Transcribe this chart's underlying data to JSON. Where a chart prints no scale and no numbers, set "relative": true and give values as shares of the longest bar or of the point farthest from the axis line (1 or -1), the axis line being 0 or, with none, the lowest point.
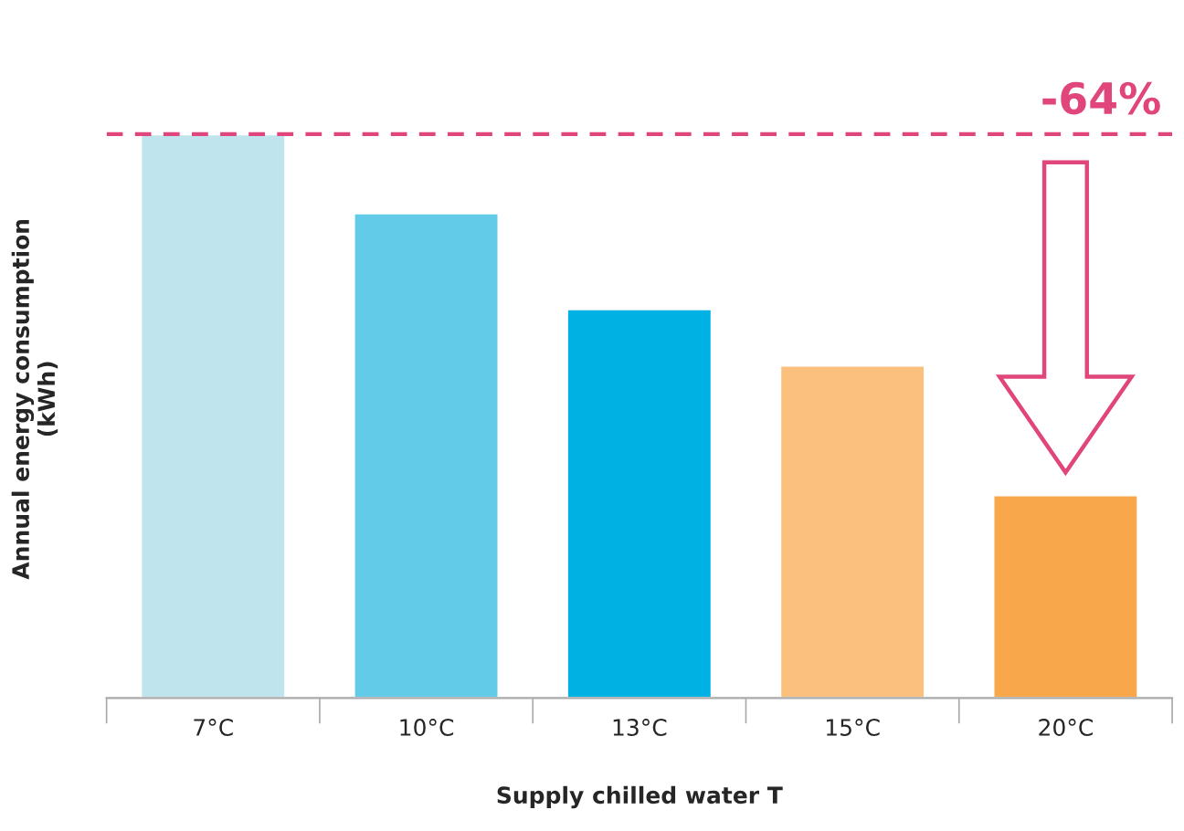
{
  "chart_data": {
    "type": "bar",
    "relative": true,
    "categories": [
      "7°C",
      "10°C",
      "13°C",
      "15°C",
      "20°C"
    ],
    "values": [
      1,
      0.86,
      0.69,
      0.59,
      0.36
    ],
    "colors": [
      "#bfe4ee",
      "#62cbe8",
      "#00b2e3",
      "#fbc07e",
      "#f8a84a"
    ],
    "xlabel": "Supply chilled water T",
    "ylabel": "Annual energy consumption\n(kWh)",
    "ref_lines": [
      {
        "axis": "y",
        "value": 1,
        "color": "#e0457b",
        "line_style": "dashed"
      }
    ],
    "annotations": [
      "-64%"
    ],
    "grid": false,
    "legend": false
  }
}
